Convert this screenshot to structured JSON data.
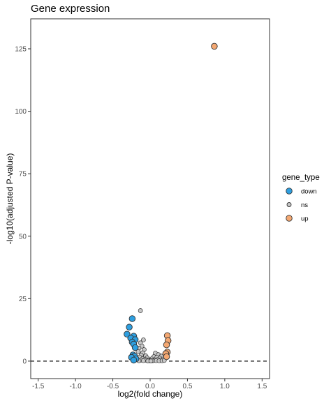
{
  "chart_data": {
    "type": "scatter",
    "title": "Gene expression",
    "xlabel": "log2(fold change)",
    "ylabel": "-log10(adjusted P-value)",
    "xlim": [
      -1.6,
      1.6
    ],
    "ylim": [
      -7,
      137
    ],
    "x_ticks": [
      -1.5,
      -1.0,
      -0.5,
      0.0,
      0.5,
      1.0,
      1.5
    ],
    "x_tick_labels": [
      "-1.5",
      "-1.0",
      "-0.5",
      "0.0",
      "0.5",
      "1.0",
      "1.5"
    ],
    "y_ticks": [
      0,
      25,
      50,
      75,
      100,
      125
    ],
    "y_tick_labels": [
      "0",
      "25",
      "50",
      "75",
      "100",
      "125"
    ],
    "grid": false,
    "reference_line": {
      "y": 0,
      "style": "dashed",
      "color": "#000000"
    },
    "legend": {
      "title": "gene_type",
      "placement": "right",
      "entries": [
        {
          "label": "down",
          "color": "#2e9fe0"
        },
        {
          "label": "ns",
          "color": "#c8c8c8"
        },
        {
          "label": "up",
          "color": "#f4a872"
        }
      ]
    },
    "series": [
      {
        "name": "down",
        "color": "#2e9fe0",
        "points": [
          [
            -0.24,
            17
          ],
          [
            -0.28,
            13.6
          ],
          [
            -0.31,
            10.8
          ],
          [
            -0.22,
            10.0
          ],
          [
            -0.26,
            9.2
          ],
          [
            -0.2,
            8.6
          ],
          [
            -0.24,
            7.6
          ],
          [
            -0.22,
            6.8
          ],
          [
            -0.2,
            5.4
          ],
          [
            -0.23,
            2.5
          ],
          [
            -0.21,
            2.0
          ],
          [
            -0.25,
            1.5
          ],
          [
            -0.19,
            0.9
          ],
          [
            -0.22,
            0.4
          ]
        ]
      },
      {
        "name": "ns",
        "color": "#c8c8c8",
        "points": [
          [
            -0.13,
            20.2
          ],
          [
            -0.09,
            8.5
          ],
          [
            -0.13,
            7.3
          ],
          [
            -0.11,
            6.0
          ],
          [
            -0.15,
            5.2
          ],
          [
            -0.08,
            4.6
          ],
          [
            -0.16,
            3.8
          ],
          [
            -0.1,
            3.3
          ],
          [
            0.07,
            3.2
          ],
          [
            0.11,
            2.6
          ],
          [
            -0.12,
            2.4
          ],
          [
            -0.06,
            2.1
          ],
          [
            0.15,
            2.0
          ],
          [
            0.05,
            1.8
          ],
          [
            -0.14,
            1.6
          ],
          [
            0.09,
            1.5
          ],
          [
            -0.04,
            1.3
          ],
          [
            0.13,
            1.2
          ],
          [
            -0.1,
            1.0
          ],
          [
            0.02,
            0.9
          ],
          [
            0.17,
            0.8
          ],
          [
            -0.07,
            0.7
          ],
          [
            0.1,
            0.6
          ],
          [
            -0.02,
            0.5
          ],
          [
            0.06,
            0.5
          ],
          [
            -0.12,
            0.4
          ],
          [
            0.14,
            0.4
          ],
          [
            0.0,
            0.3
          ],
          [
            -0.05,
            0.3
          ],
          [
            0.04,
            0.2
          ],
          [
            0.08,
            0.2
          ],
          [
            -0.09,
            0.2
          ],
          [
            0.12,
            0.1
          ],
          [
            -0.01,
            0.1
          ],
          [
            0.03,
            0.1
          ],
          [
            -0.03,
            0.05
          ],
          [
            0.01,
            0.05
          ],
          [
            0.16,
            0.1
          ],
          [
            -0.15,
            0.1
          ],
          [
            0.19,
            0.3
          ]
        ]
      },
      {
        "name": "up",
        "color": "#f4a872",
        "points": [
          [
            0.86,
            126
          ],
          [
            0.23,
            10.2
          ],
          [
            0.24,
            8.2
          ],
          [
            0.22,
            6.5
          ],
          [
            0.23,
            3.6
          ],
          [
            0.21,
            3.0
          ],
          [
            0.22,
            1.8
          ]
        ]
      }
    ]
  }
}
